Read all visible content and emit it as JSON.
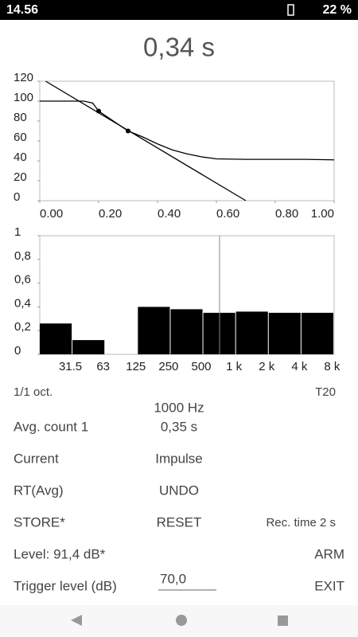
{
  "status_bar": {
    "time": "14.56",
    "battery": "22 %"
  },
  "header": {
    "result": "0,34 s"
  },
  "chart_data": [
    {
      "type": "line",
      "xlim": [
        0,
        1
      ],
      "ylim": [
        0,
        120
      ],
      "xticks": [
        {
          "value": 0,
          "label": "0.00"
        },
        {
          "value": 0.2,
          "label": "0.20"
        },
        {
          "value": 0.4,
          "label": "0.40"
        },
        {
          "value": 0.6,
          "label": "0.60"
        },
        {
          "value": 0.8,
          "label": "0.80"
        },
        {
          "value": 1,
          "label": "1.00"
        }
      ],
      "yticks": [
        0,
        20,
        40,
        60,
        80,
        100,
        120
      ],
      "series": [
        {
          "color": "#000000",
          "x": [
            0,
            0.05,
            0.1,
            0.15,
            0.18,
            0.2,
            0.25,
            0.3,
            0.35,
            0.4,
            0.45,
            0.5,
            0.55,
            0.6,
            0.7,
            0.8,
            0.9,
            1.0
          ],
          "values": [
            100,
            100,
            100,
            100,
            98,
            90,
            80,
            70,
            64,
            57,
            51,
            47,
            44,
            42,
            41.5,
            41.5,
            41.5,
            41
          ]
        },
        {
          "color": "#000000",
          "x": [
            0.02,
            0.7
          ],
          "values": [
            120,
            0
          ]
        },
        {
          "type": "scatter",
          "color": "#000000",
          "x": [
            0.2,
            0.3
          ],
          "values": [
            90,
            70
          ]
        }
      ]
    },
    {
      "type": "bar",
      "categories": [
        "31.5",
        "63",
        "125",
        "250",
        "500",
        "1 k",
        "2 k",
        "4 k",
        "8 k"
      ],
      "values": [
        0.26,
        0.12,
        null,
        0.4,
        0.38,
        0.35,
        0.36,
        0.35,
        0.35
      ],
      "color": "#000000",
      "ylim": [
        0,
        1
      ],
      "yticks": [
        {
          "value": 0,
          "label": "0"
        },
        {
          "value": 0.2,
          "label": "0,2"
        },
        {
          "value": 0.4,
          "label": "0,4"
        },
        {
          "value": 0.6,
          "label": "0,6"
        },
        {
          "value": 0.8,
          "label": "0,8"
        },
        {
          "value": 1,
          "label": "1"
        }
      ]
    }
  ],
  "band_info": {
    "resolution": "1/1 oct.",
    "metric": "T20",
    "frequency": "1000 Hz"
  },
  "controls": {
    "avg_count": "Avg. count 1",
    "avg_value": "0,35 s",
    "current": "Current",
    "impulse": "Impulse",
    "rt_avg": "RT(Avg)",
    "undo": "UNDO",
    "store": "STORE*",
    "reset": "RESET",
    "rec_time": "Rec. time 2 s",
    "level": "Level: 91,4 dB*",
    "arm": "ARM",
    "trigger_label": "Trigger level (dB)",
    "trigger_value": "70,0",
    "exit": "EXIT"
  }
}
